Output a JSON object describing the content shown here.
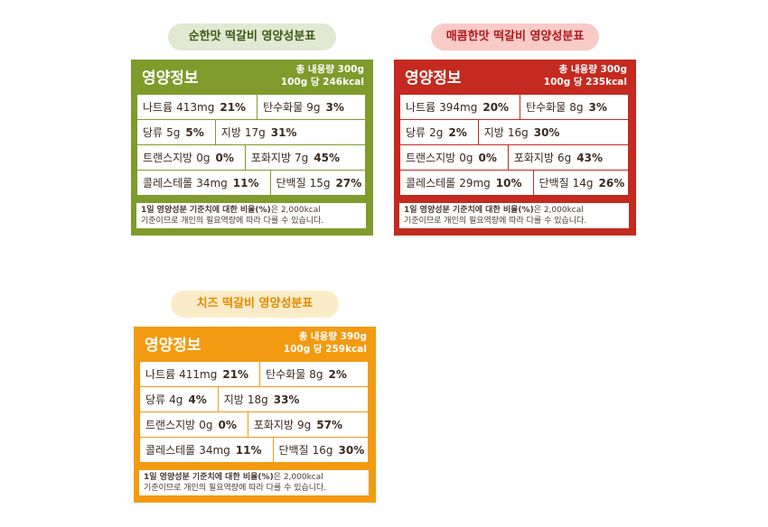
{
  "panels": [
    {
      "title": "순한맛 떡갈비 영양성분표",
      "header": "영양정보",
      "total": "총 내용량 300g",
      "per_serving": "100g 당 246kcal",
      "rows": [
        [
          {
            "name": "나트륨",
            "amount": "413mg",
            "percent": "21%"
          },
          {
            "name": "탄수화물",
            "amount": "9g",
            "percent": "3%"
          }
        ],
        [
          {
            "name": "당류",
            "amount": "5g",
            "percent": "5%"
          },
          {
            "name": "지방",
            "amount": "17g",
            "percent": "31%"
          }
        ],
        [
          {
            "name": "트랜스지방",
            "amount": "0g",
            "percent": "0%"
          },
          {
            "name": "포화지방",
            "amount": "7g",
            "percent": "45%"
          }
        ],
        [
          {
            "name": "콜레스테롤",
            "amount": "34mg",
            "percent": "11%"
          },
          {
            "name": "단백질",
            "amount": "15g",
            "percent": "27%"
          }
        ]
      ],
      "footnote_bold": "1일 영양성분 기준치에 대한 비율(%)",
      "footnote_rest": "은 2,000kcal",
      "footnote_line2": "기준이므로 개인의 필요역량에 따라 다를 수 있습니다."
    },
    {
      "title": "매콤한맛 떡갈비 영양성분표",
      "header": "영양정보",
      "total": "총 내용량 300g",
      "per_serving": "100g 당 235kcal",
      "rows": [
        [
          {
            "name": "나트륨",
            "amount": "394mg",
            "percent": "20%"
          },
          {
            "name": "탄수화물",
            "amount": "8g",
            "percent": "3%"
          }
        ],
        [
          {
            "name": "당류",
            "amount": "2g",
            "percent": "2%"
          },
          {
            "name": "지방",
            "amount": "16g",
            "percent": "30%"
          }
        ],
        [
          {
            "name": "트랜스지방",
            "amount": "0g",
            "percent": "0%"
          },
          {
            "name": "포화지방",
            "amount": "6g",
            "percent": "43%"
          }
        ],
        [
          {
            "name": "콜레스테롤",
            "amount": "29mg",
            "percent": "10%"
          },
          {
            "name": "단백질",
            "amount": "14g",
            "percent": "26%"
          }
        ]
      ],
      "footnote_bold": "1일 영양성분 기준치에 대한 비율(%)",
      "footnote_rest": "은 2,000kcal",
      "footnote_line2": "기준이므로 개인의 필요역량에 따라 다를 수 있습니다."
    },
    {
      "title": "치즈 떡갈비 영양성분표",
      "header": "영양정보",
      "total": "총 내용량 390g",
      "per_serving": "100g 당 259kcal",
      "rows": [
        [
          {
            "name": "나트륨",
            "amount": "411mg",
            "percent": "21%"
          },
          {
            "name": "탄수화물",
            "amount": "8g",
            "percent": "2%"
          }
        ],
        [
          {
            "name": "당류",
            "amount": "4g",
            "percent": "4%"
          },
          {
            "name": "지방",
            "amount": "18g",
            "percent": "33%"
          }
        ],
        [
          {
            "name": "트랜스지방",
            "amount": "0g",
            "percent": "0%"
          },
          {
            "name": "포화지방",
            "amount": "9g",
            "percent": "57%"
          }
        ],
        [
          {
            "name": "콜레스테롤",
            "amount": "34mg",
            "percent": "11%"
          },
          {
            "name": "단백질",
            "amount": "16g",
            "percent": "30%"
          }
        ]
      ],
      "footnote_bold": "1일 영양성분 기준치에 대한 비율(%)",
      "footnote_rest": "은 2,000kcal",
      "footnote_line2": "기준이므로 개인의 필요역량에 따라 다를 수 있습니다."
    }
  ]
}
